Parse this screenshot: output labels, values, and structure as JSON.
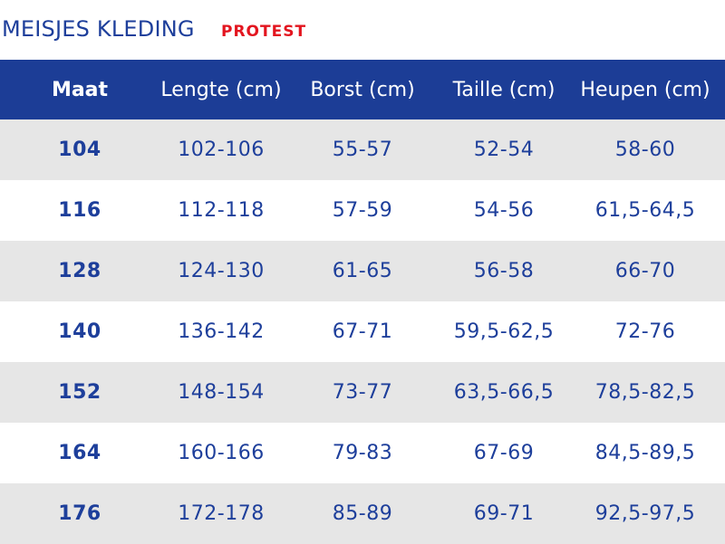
{
  "title": {
    "main": "MEISJES KLEDING",
    "brand": "PROTEST"
  },
  "colors": {
    "header_bg": "#1c3d96",
    "text_blue": "#1e3f9b",
    "brand_red": "#e3151f",
    "row_shaded": "#e6e6e6",
    "row_plain": "#ffffff"
  },
  "table": {
    "headers": [
      "Maat",
      "Lengte (cm)",
      "Borst (cm)",
      "Taille (cm)",
      "Heupen (cm)"
    ],
    "rows": [
      [
        "104",
        "102-106",
        "55-57",
        "52-54",
        "58-60"
      ],
      [
        "116",
        "112-118",
        "57-59",
        "54-56",
        "61,5-64,5"
      ],
      [
        "128",
        "124-130",
        "61-65",
        "56-58",
        "66-70"
      ],
      [
        "140",
        "136-142",
        "67-71",
        "59,5-62,5",
        "72-76"
      ],
      [
        "152",
        "148-154",
        "73-77",
        "63,5-66,5",
        "78,5-82,5"
      ],
      [
        "164",
        "160-166",
        "79-83",
        "67-69",
        "84,5-89,5"
      ],
      [
        "176",
        "172-178",
        "85-89",
        "69-71",
        "92,5-97,5"
      ]
    ]
  }
}
